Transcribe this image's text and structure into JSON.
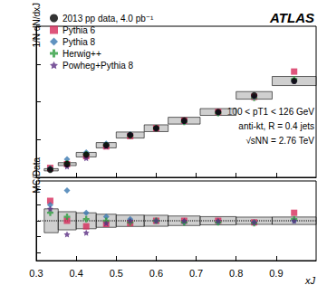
{
  "chart_data": {
    "type": "scatter",
    "title": "ATLAS",
    "annotations": [
      "100 < pT1 < 126 GeV",
      "anti-kt, R = 0.4 jets",
      "√sNN = 2.76 TeV"
    ],
    "xlabel": "xJ",
    "ylabel": "1/N dN/dxJ",
    "ratio_ylabel": "MC/Data",
    "x": [
      0.335,
      0.377,
      0.425,
      0.475,
      0.535,
      0.6,
      0.67,
      0.755,
      0.845,
      0.945
    ],
    "bins": [
      0.32,
      0.355,
      0.4,
      0.45,
      0.5,
      0.57,
      0.63,
      0.71,
      0.8,
      0.89,
      1.0
    ],
    "xlim": [
      0.3,
      1.0
    ],
    "xticks": [
      0.3,
      0.4,
      0.5,
      0.6,
      0.7,
      0.8,
      0.9
    ],
    "ylim": [
      0,
      4
    ],
    "yticks": [
      0,
      1,
      2,
      3,
      4
    ],
    "ratio_ylim": [
      0.5,
      1.5
    ],
    "ratio_yticks": [
      0.6,
      0.8,
      1,
      1.2,
      1.4
    ],
    "ratio_line": 1,
    "tick_labels": "x",
    "legend": "upper left",
    "series": [
      {
        "name": "2013 pp data, 4.0 pb⁻¹",
        "color": "#000000",
        "marker": "circle",
        "values": [
          0.2,
          0.35,
          0.6,
          0.85,
          1.12,
          1.3,
          1.5,
          1.73,
          2.17,
          2.55
        ],
        "sys_errors": [
          0.03,
          0.04,
          0.06,
          0.07,
          0.08,
          0.09,
          0.09,
          0.09,
          0.1,
          0.12
        ]
      },
      {
        "name": "Pythia 6",
        "color": "#d62a5a",
        "marker": "square",
        "values": [
          0.25,
          0.35,
          0.56,
          0.82,
          1.09,
          1.3,
          1.5,
          1.73,
          2.13,
          2.8
        ],
        "ratio": [
          1.25,
          1.0,
          0.93,
          0.96,
          0.97,
          1.0,
          1.0,
          1.0,
          0.98,
          1.1
        ]
      },
      {
        "name": "Pythia 8",
        "color": "#3a78b0",
        "marker": "diamond",
        "values": [
          0.24,
          0.48,
          0.66,
          0.89,
          1.14,
          1.3,
          1.47,
          1.7,
          2.13,
          2.55
        ],
        "ratio": [
          1.2,
          1.38,
          1.1,
          1.05,
          1.02,
          1.0,
          0.98,
          0.98,
          0.98,
          1.0
        ]
      },
      {
        "name": "Herwig++",
        "color": "#2e9e3e",
        "marker": "plus",
        "values": [
          0.22,
          0.37,
          0.61,
          0.85,
          1.1,
          1.3,
          1.47,
          1.7,
          2.1,
          2.6
        ],
        "ratio": [
          1.1,
          1.05,
          1.02,
          1.0,
          0.98,
          1.0,
          0.98,
          0.98,
          0.97,
          1.02
        ]
      },
      {
        "name": "Powheg+Pythia 8",
        "color": "#5a2d82",
        "marker": "star",
        "values": [
          0.23,
          0.29,
          0.51,
          0.82,
          1.12,
          1.3,
          1.5,
          1.73,
          2.13,
          2.55
        ],
        "ratio": [
          1.15,
          0.83,
          0.85,
          0.97,
          1.0,
          1.0,
          1.0,
          1.0,
          0.98,
          1.0
        ]
      }
    ]
  }
}
